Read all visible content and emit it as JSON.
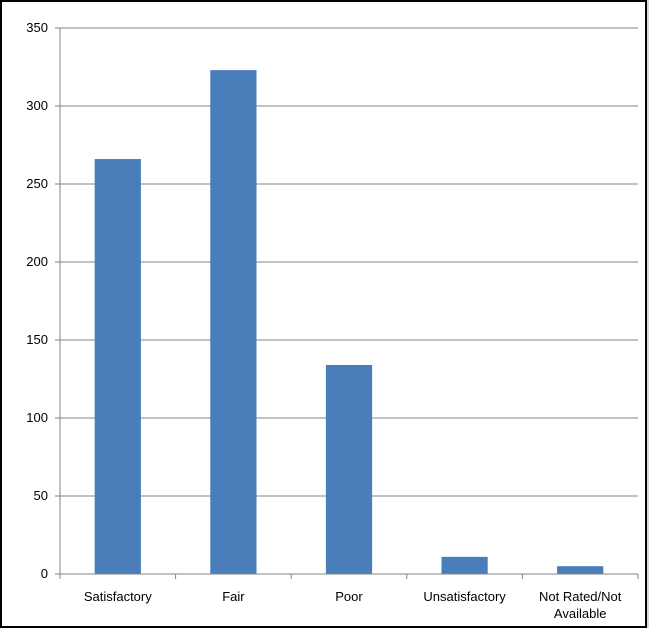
{
  "chart_data": {
    "type": "bar",
    "title": "",
    "xlabel": "",
    "ylabel": "",
    "categories": [
      "Satisfactory",
      "Fair",
      "Poor",
      "Unsatisfactory",
      "Not Rated/Not Available"
    ],
    "category_lines": [
      [
        "Satisfactory"
      ],
      [
        "Fair"
      ],
      [
        "Poor"
      ],
      [
        "Unsatisfactory"
      ],
      [
        "Not Rated/Not",
        "Available"
      ]
    ],
    "values": [
      266,
      323,
      134,
      11,
      5
    ],
    "ylim": [
      0,
      350
    ],
    "yticks": [
      0,
      50,
      100,
      150,
      200,
      250,
      300,
      350
    ],
    "ytick_labels": [
      "0",
      "50",
      "100",
      "150",
      "200",
      "250",
      "300",
      "350"
    ],
    "grid": true,
    "legend": "none",
    "bar_color": "#4a7ebb",
    "grid_color": "#868686"
  }
}
